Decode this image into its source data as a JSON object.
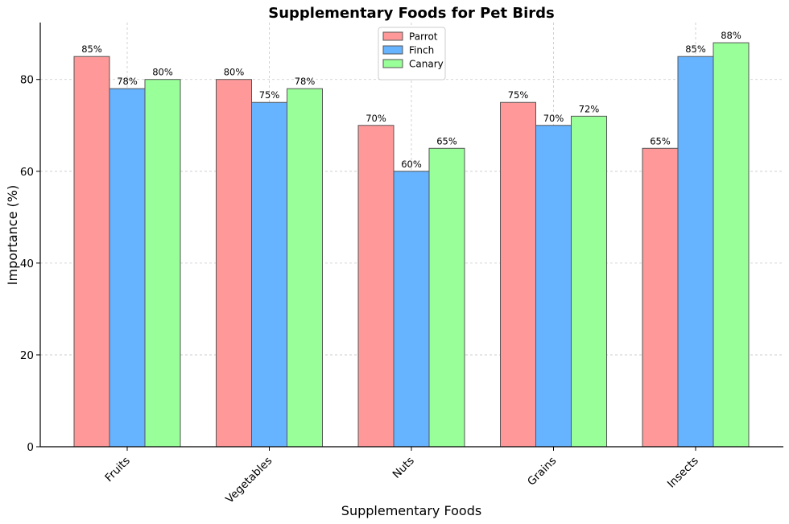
{
  "chart_data": {
    "type": "bar",
    "title": "Supplementary Foods for Pet Birds",
    "xlabel": "Supplementary Foods",
    "ylabel": "Importance (%)",
    "categories": [
      "Fruits",
      "Vegetables",
      "Nuts",
      "Grains",
      "Insects"
    ],
    "series": [
      {
        "name": "Parrot",
        "color": "#ff9999",
        "values": [
          85,
          80,
          70,
          75,
          65
        ],
        "labels": [
          "85%",
          "80%",
          "70%",
          "75%",
          "65%"
        ]
      },
      {
        "name": "Finch",
        "color": "#66b3ff",
        "values": [
          78,
          75,
          60,
          70,
          85
        ],
        "labels": [
          "78%",
          "75%",
          "60%",
          "70%",
          "85%"
        ]
      },
      {
        "name": "Canary",
        "color": "#99ff99",
        "values": [
          80,
          78,
          65,
          72,
          88
        ],
        "labels": [
          "80%",
          "78%",
          "65%",
          "72%",
          "88%"
        ]
      }
    ],
    "ylim": [
      0,
      92.4
    ],
    "yticks": [
      0,
      20,
      40,
      60,
      80
    ],
    "ytick_labels": [
      "0",
      "20",
      "40",
      "60",
      "80"
    ],
    "grid": true,
    "legend_position": "top-center"
  }
}
